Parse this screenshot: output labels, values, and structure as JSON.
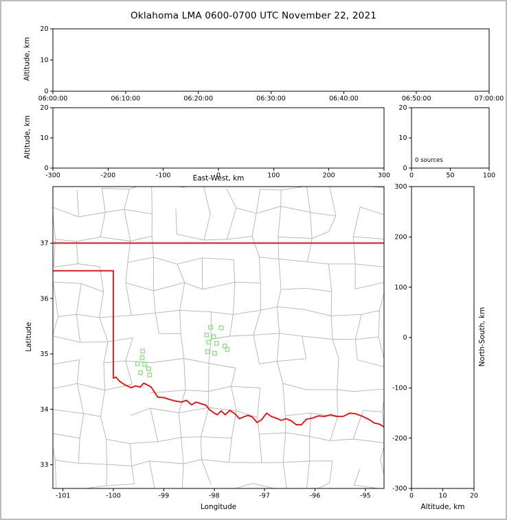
{
  "title": "Oklahoma LMA 0600-0700 UTC November 22, 2021",
  "colors": {
    "axis": "#000000",
    "state_border": "#ff0000",
    "county_lines": "#b3b3b3",
    "station_marker": "#85e27d",
    "figure_frame": "#bcbcbc",
    "background": "#ffffff"
  },
  "chart_data": [
    {
      "id": "time_height",
      "type": "scatter",
      "xlabel": "",
      "ylabel": "Altitude, km",
      "x_ticks": [
        "06:00:00",
        "06:10:00",
        "06:20:00",
        "06:30:00",
        "06:40:00",
        "06:50:00",
        "07:00:00"
      ],
      "x_tick_even": true,
      "xlim": [
        0,
        3600
      ],
      "ylim": [
        0,
        20
      ],
      "y_ticks": [
        0,
        10,
        20
      ],
      "points": []
    },
    {
      "id": "ew_height",
      "type": "scatter",
      "xlabel": "East-West, km",
      "ylabel": "Altitude, km",
      "xlim": [
        -300,
        300
      ],
      "x_ticks": [
        -300,
        -200,
        -100,
        0,
        100,
        200,
        300
      ],
      "ylim": [
        0,
        20
      ],
      "y_ticks": [
        0,
        10,
        20
      ],
      "points": []
    },
    {
      "id": "source_histogram",
      "type": "line",
      "annotation": "0 sources",
      "xlim": [
        0,
        100
      ],
      "x_ticks": [
        0,
        50,
        100
      ],
      "ylim": [
        0,
        20
      ],
      "y_ticks": [
        0,
        10,
        20
      ],
      "points": []
    },
    {
      "id": "plan_view",
      "type": "scatter",
      "xlabel": "Longitude",
      "ylabel": "Latitude",
      "xlim": [
        -101.2,
        -94.63
      ],
      "x_ticks": [
        -101,
        -100,
        -99,
        -98,
        -97,
        -96,
        -95
      ],
      "ylim": [
        32.57,
        38.02
      ],
      "y_ticks": [
        33,
        34,
        35,
        36,
        37
      ],
      "stations": [
        [
          -99.42,
          35.05
        ],
        [
          -99.43,
          34.93
        ],
        [
          -99.52,
          34.82
        ],
        [
          -99.38,
          34.81
        ],
        [
          -99.3,
          34.73
        ],
        [
          -99.46,
          34.66
        ],
        [
          -99.28,
          34.62
        ],
        [
          -98.07,
          35.48
        ],
        [
          -97.86,
          35.47
        ],
        [
          -98.15,
          35.34
        ],
        [
          -98.01,
          35.31
        ],
        [
          -98.11,
          35.21
        ],
        [
          -97.95,
          35.19
        ],
        [
          -97.79,
          35.14
        ],
        [
          -98.13,
          35.04
        ],
        [
          -97.99,
          35.01
        ],
        [
          -97.74,
          35.08
        ]
      ],
      "state_border": [
        {
          "name": "oklahoma-kansas-border",
          "points": [
            [
              -101.2,
              37.0
            ],
            [
              -94.63,
              37.0
            ]
          ]
        },
        {
          "name": "oklahoma-texas-border",
          "points": [
            [
              -101.2,
              36.5
            ],
            [
              -100.0,
              36.5
            ],
            [
              -100.0,
              34.56
            ],
            [
              -99.95,
              34.58
            ],
            [
              -99.87,
              34.5
            ],
            [
              -99.77,
              34.44
            ],
            [
              -99.65,
              34.39
            ],
            [
              -99.56,
              34.42
            ],
            [
              -99.47,
              34.4
            ],
            [
              -99.4,
              34.47
            ],
            [
              -99.33,
              34.44
            ],
            [
              -99.25,
              34.4
            ],
            [
              -99.2,
              34.33
            ],
            [
              -99.12,
              34.22
            ],
            [
              -99.0,
              34.21
            ],
            [
              -98.9,
              34.18
            ],
            [
              -98.78,
              34.15
            ],
            [
              -98.65,
              34.13
            ],
            [
              -98.55,
              34.16
            ],
            [
              -98.45,
              34.08
            ],
            [
              -98.36,
              34.13
            ],
            [
              -98.26,
              34.1
            ],
            [
              -98.16,
              34.07
            ],
            [
              -98.09,
              33.99
            ],
            [
              -98.0,
              33.93
            ],
            [
              -97.94,
              33.9
            ],
            [
              -97.86,
              33.97
            ],
            [
              -97.78,
              33.9
            ],
            [
              -97.69,
              33.98
            ],
            [
              -97.59,
              33.92
            ],
            [
              -97.5,
              33.83
            ],
            [
              -97.42,
              33.86
            ],
            [
              -97.33,
              33.89
            ],
            [
              -97.24,
              33.86
            ],
            [
              -97.15,
              33.76
            ],
            [
              -97.06,
              33.81
            ],
            [
              -96.96,
              33.93
            ],
            [
              -96.87,
              33.87
            ],
            [
              -96.77,
              33.84
            ],
            [
              -96.67,
              33.8
            ],
            [
              -96.57,
              33.83
            ],
            [
              -96.47,
              33.79
            ],
            [
              -96.37,
              33.72
            ],
            [
              -96.27,
              33.72
            ],
            [
              -96.17,
              33.82
            ],
            [
              -96.05,
              33.84
            ],
            [
              -95.93,
              33.88
            ],
            [
              -95.81,
              33.87
            ],
            [
              -95.69,
              33.9
            ],
            [
              -95.56,
              33.87
            ],
            [
              -95.44,
              33.87
            ],
            [
              -95.31,
              33.93
            ],
            [
              -95.2,
              33.92
            ],
            [
              -95.08,
              33.88
            ],
            [
              -94.94,
              33.82
            ],
            [
              -94.82,
              33.75
            ],
            [
              -94.72,
              33.73
            ],
            [
              -94.63,
              33.68
            ]
          ]
        }
      ],
      "county_grid": {
        "seed": 20211122,
        "cols": 13,
        "rows": 12,
        "jitter": 0.22,
        "keep_prob": 0.8
      }
    },
    {
      "id": "ns_height",
      "type": "scatter",
      "xlabel": "Altitude, km",
      "ylabel_right": "North-South, km",
      "xlim": [
        0,
        20
      ],
      "x_ticks": [
        0,
        10,
        20
      ],
      "ylim": [
        -300,
        300
      ],
      "y_ticks": [
        -300,
        -200,
        -100,
        0,
        100,
        200,
        300
      ],
      "points": []
    }
  ]
}
